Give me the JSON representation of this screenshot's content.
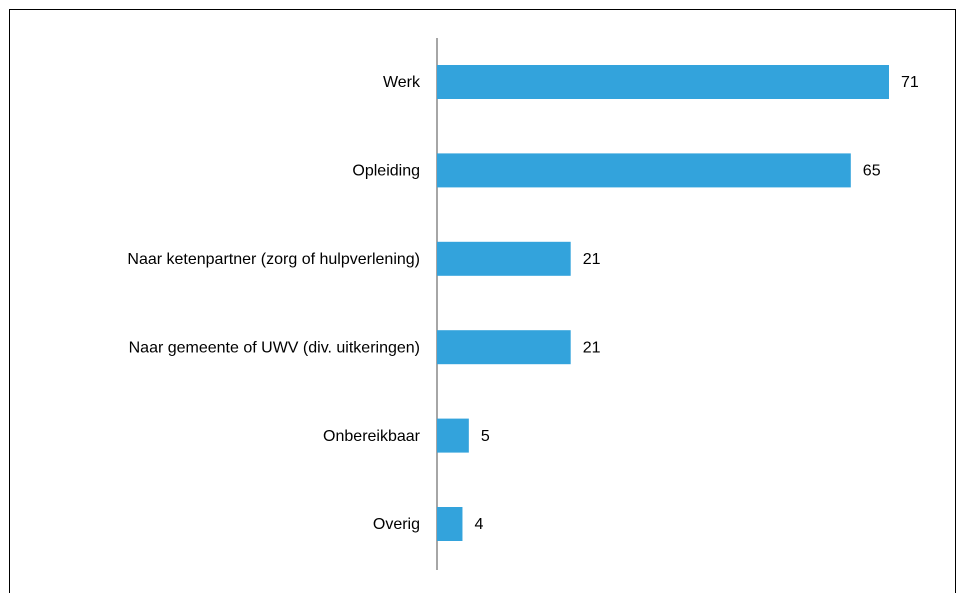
{
  "chart_data": {
    "type": "bar",
    "orientation": "horizontal",
    "categories": [
      "Werk",
      "Opleiding",
      "Naar ketenpartner (zorg of hulpverlening)",
      "Naar gemeente of UWV (div. uitkeringen)",
      "Onbereikbaar",
      "Overig"
    ],
    "values": [
      71,
      65,
      21,
      21,
      5,
      4
    ],
    "color": "#33a3dc"
  }
}
